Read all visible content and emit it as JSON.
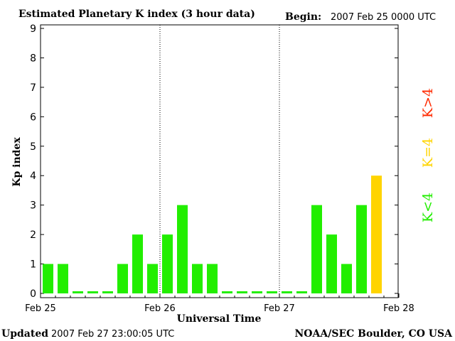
{
  "header": {
    "title": "Estimated Planetary K index (3 hour data)",
    "begin_label": "Begin:",
    "begin_value": "2007 Feb 25 0000 UTC"
  },
  "footer": {
    "updated_label": "Updated",
    "updated_value": "2007 Feb 27 23:00:05 UTC",
    "source": "NOAA/SEC Boulder, CO USA"
  },
  "legend": {
    "low": "K<4",
    "equal": "K=4",
    "high": "K>4"
  },
  "colors": {
    "low": "#22ee00",
    "equal": "#ffd400",
    "high": "#ff2a00",
    "axis": "#000000"
  },
  "chart_data": {
    "type": "bar",
    "title": "Estimated Planetary K index (3 hour data)",
    "xlabel": "Universal Time",
    "ylabel": "Kp index",
    "ylim": [
      0,
      9
    ],
    "yticks": [
      "0",
      "1",
      "2",
      "3",
      "4",
      "5",
      "6",
      "7",
      "8",
      "9"
    ],
    "xticks": [
      "Feb 25",
      "Feb 26",
      "Feb 27",
      "Feb 28"
    ],
    "day_dividers": [
      "Feb 26",
      "Feb 27"
    ],
    "bar_interval_hours": 3,
    "values": [
      1,
      1,
      0,
      0,
      0,
      1,
      2,
      1,
      2,
      3,
      1,
      1,
      0,
      0,
      0,
      0,
      0,
      0,
      3,
      2,
      1,
      3,
      4
    ],
    "series": [
      {
        "values": [
          1,
          1,
          0,
          0,
          0,
          1,
          2,
          1,
          2,
          3,
          1,
          1,
          0,
          0,
          0,
          0,
          0,
          0,
          3,
          2,
          1,
          3,
          4
        ]
      }
    ]
  }
}
